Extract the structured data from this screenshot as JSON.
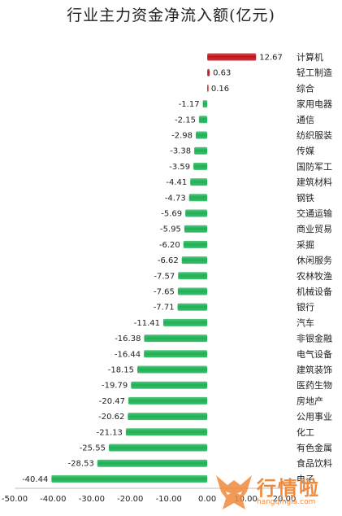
{
  "chart_data": {
    "type": "bar",
    "orientation": "horizontal",
    "title": "行业主力资金净流入额(亿元)",
    "categories": [
      "计算机",
      "轻工制造",
      "综合",
      "家用电器",
      "通信",
      "纺织服装",
      "传媒",
      "国防军工",
      "建筑材料",
      "钢铁",
      "交通运输",
      "商业贸易",
      "采掘",
      "休闲服务",
      "农林牧渔",
      "机械设备",
      "银行",
      "汽车",
      "非银金融",
      "电气设备",
      "建筑装饰",
      "医药生物",
      "房地产",
      "公用事业",
      "化工",
      "有色金属",
      "食品饮料",
      "电子"
    ],
    "values": [
      12.67,
      0.63,
      0.16,
      -1.17,
      -2.15,
      -2.98,
      -3.38,
      -3.59,
      -4.41,
      -4.73,
      -5.69,
      -5.95,
      -6.2,
      -6.62,
      -7.57,
      -7.65,
      -7.71,
      -11.41,
      -16.38,
      -16.44,
      -18.15,
      -19.79,
      -20.47,
      -20.62,
      -21.13,
      -25.55,
      -28.53,
      -40.44
    ],
    "value_labels": [
      "12.67",
      "0.63",
      "0.16",
      "-1.17",
      "-2.15",
      "-2.98",
      "-3.38",
      "-3.59",
      "-4.41",
      "-4.73",
      "-5.69",
      "-5.95",
      "-6.20",
      "-6.62",
      "-7.57",
      "-7.65",
      "-7.71",
      "-11.41",
      "-16.38",
      "-16.44",
      "-18.15",
      "-19.79",
      "-20.47",
      "-20.62",
      "-21.13",
      "-25.55",
      "-28.53",
      "-40.44"
    ],
    "xlim": [
      -50,
      20
    ],
    "x_ticks": [
      "-50.00",
      "-40.00",
      "-30.00",
      "-20.00",
      "-10.00",
      "0.00",
      "10.00",
      "20.00"
    ],
    "positive_color": "#c0141b",
    "negative_color": "#1db154",
    "grid": false,
    "legend": "none"
  },
  "watermark": {
    "text": "行情啦",
    "url": "hangqingla.com"
  }
}
